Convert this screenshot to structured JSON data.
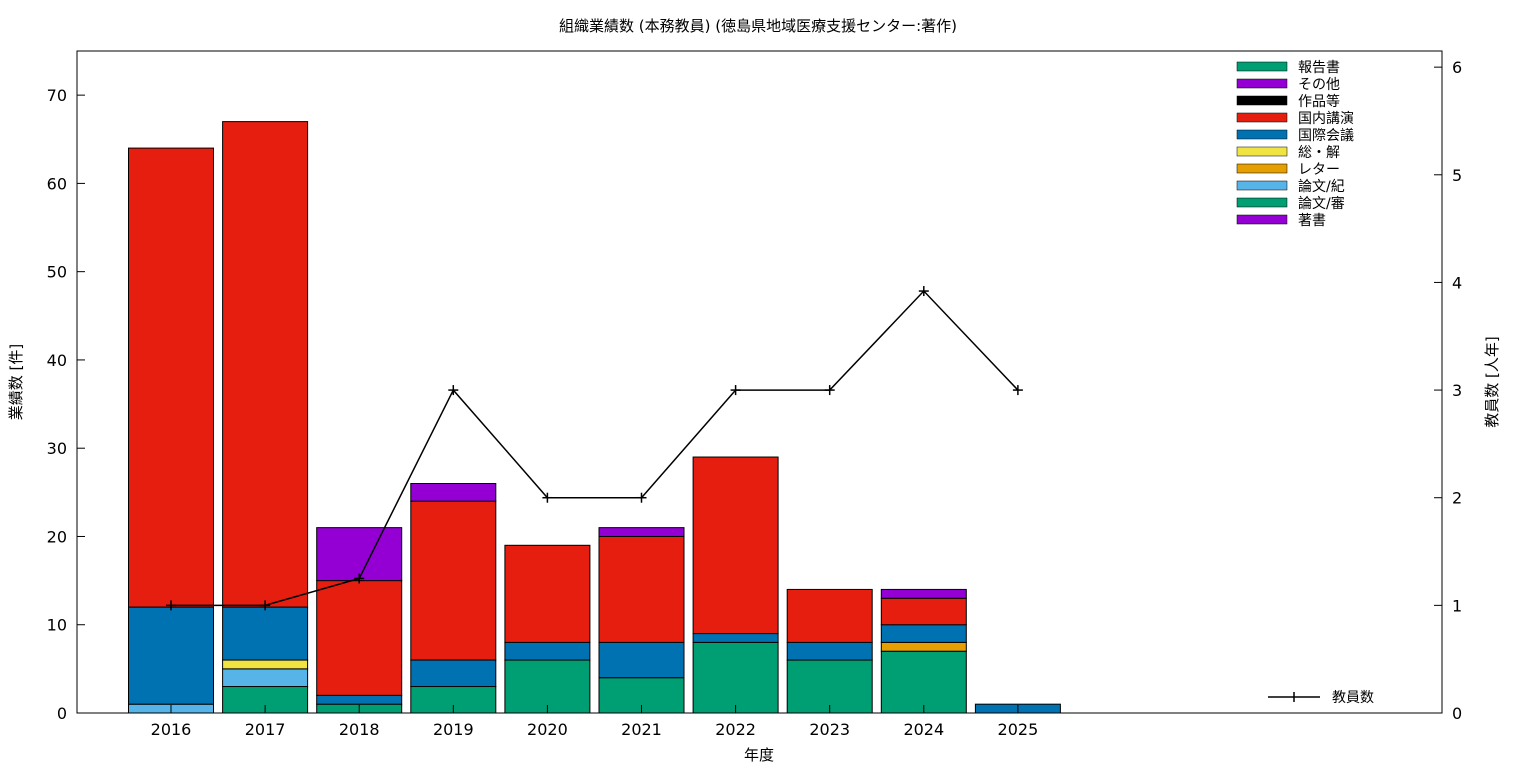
{
  "chart_data": {
    "type": "bar",
    "stacked": true,
    "title": "組織業績数 (本務教員) (徳島県地域医療支援センター:著作)",
    "xlabel": "年度",
    "ylabel": "業績数 [件]",
    "y2label": "教員数 [人年]",
    "categories": [
      "2016",
      "2017",
      "2018",
      "2019",
      "2020",
      "2021",
      "2022",
      "2023",
      "2024",
      "2025"
    ],
    "ylim": [
      0,
      75
    ],
    "y_ticks": [
      0,
      10,
      20,
      30,
      40,
      50,
      60,
      70
    ],
    "y2lim": [
      0,
      6.15
    ],
    "y2_ticks": [
      0,
      1,
      2,
      3,
      4,
      5,
      6
    ],
    "grid": false,
    "legend_position": "top-right",
    "series": [
      {
        "name": "著書",
        "color": "#9400D3",
        "values": [
          0,
          0,
          0,
          0,
          0,
          0,
          0,
          0,
          0,
          0
        ]
      },
      {
        "name": "論文/審",
        "color": "#009E73",
        "values": [
          0,
          3,
          1,
          3,
          6,
          4,
          8,
          6,
          7,
          0
        ]
      },
      {
        "name": "論文/紀",
        "color": "#56B4E9",
        "values": [
          1,
          2,
          0,
          0,
          0,
          0,
          0,
          0,
          0,
          0
        ]
      },
      {
        "name": "レター",
        "color": "#E69F00",
        "values": [
          0,
          0,
          0,
          0,
          0,
          0,
          0,
          0,
          1,
          0
        ]
      },
      {
        "name": "総・解",
        "color": "#F0E442",
        "values": [
          0,
          1,
          0,
          0,
          0,
          0,
          0,
          0,
          0,
          0
        ]
      },
      {
        "name": "国際会議",
        "color": "#0072B2",
        "values": [
          11,
          6,
          1,
          3,
          2,
          4,
          1,
          2,
          2,
          1
        ]
      },
      {
        "name": "国内講演",
        "color": "#E51E10",
        "values": [
          52,
          55,
          13,
          18,
          11,
          12,
          20,
          6,
          3,
          0
        ]
      },
      {
        "name": "作品等",
        "color": "#000000",
        "values": [
          0,
          0,
          0,
          0,
          0,
          0,
          0,
          0,
          0,
          0
        ]
      },
      {
        "name": "その他",
        "color": "#9400D3",
        "values": [
          0,
          0,
          6,
          2,
          0,
          1,
          0,
          0,
          1,
          0
        ]
      },
      {
        "name": "報告書",
        "color": "#009E73",
        "values": [
          0,
          0,
          0,
          0,
          0,
          0,
          0,
          0,
          0,
          0
        ]
      }
    ],
    "line_series": {
      "name": "教員数",
      "axis": "y2",
      "color": "#000000",
      "values": [
        1,
        1,
        1.25,
        3,
        2,
        2,
        3,
        3,
        3.92,
        3
      ]
    }
  }
}
